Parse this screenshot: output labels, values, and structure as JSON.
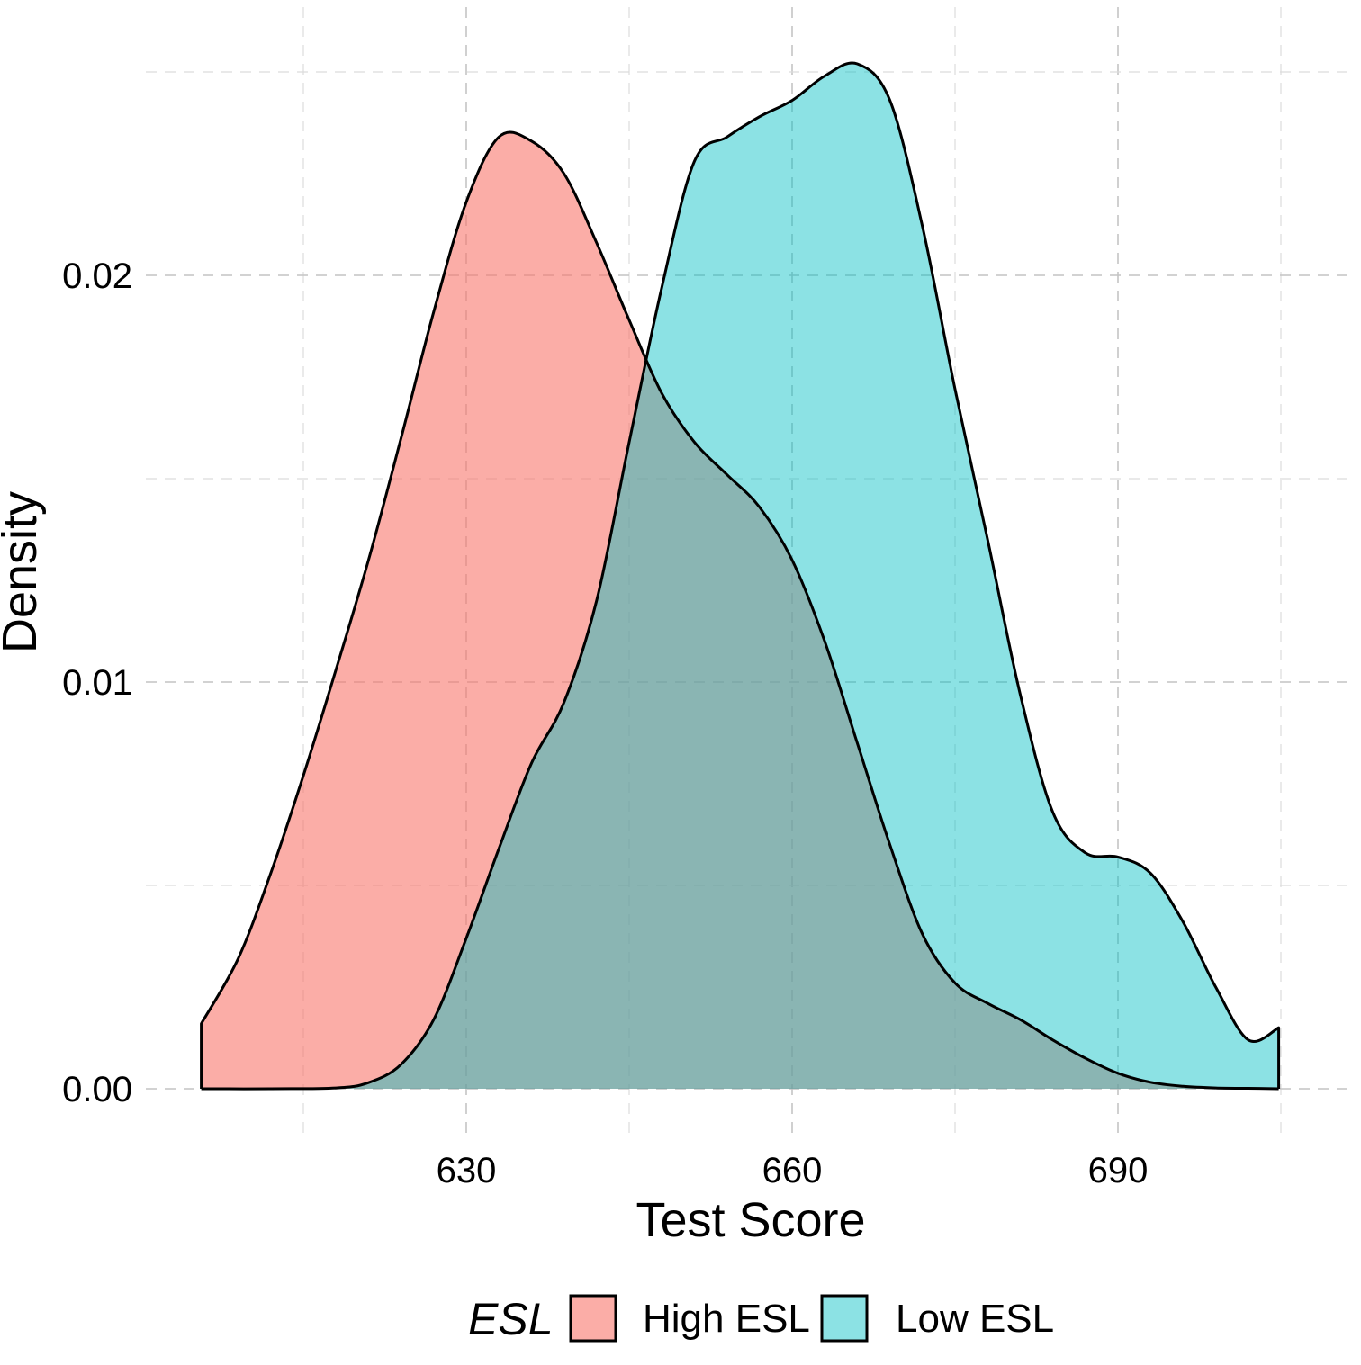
{
  "chart_data": {
    "type": "area",
    "xlabel": "Test Score",
    "ylabel": "Density",
    "xlim": [
      605,
      707
    ],
    "ylim": [
      -0.0012,
      0.0253
    ],
    "x_ticks": [
      630,
      660,
      690
    ],
    "x_tick_labels": [
      "630",
      "660",
      "690"
    ],
    "y_ticks": [
      0.0,
      0.01,
      0.02
    ],
    "y_tick_labels": [
      "0.00",
      "0.01",
      "0.02"
    ],
    "grid": true,
    "legend": {
      "title": "ESL",
      "placement": "bottom"
    },
    "series": [
      {
        "name": "High ESL",
        "color": "#F8766D",
        "opacity": 0.6,
        "x": [
          605.6,
          609,
          612,
          615,
          618,
          621,
          624,
          627,
          630,
          633,
          636,
          639,
          642,
          645,
          648,
          651,
          654,
          657,
          660,
          663,
          666,
          669,
          672,
          675,
          678,
          681,
          684,
          687,
          690,
          693,
          696,
          699,
          702,
          704.8
        ],
        "y": [
          0.0016,
          0.0032,
          0.0053,
          0.0077,
          0.0103,
          0.013,
          0.016,
          0.0191,
          0.0218,
          0.0234,
          0.0233,
          0.0225,
          0.0208,
          0.0189,
          0.0171,
          0.0159,
          0.0151,
          0.0143,
          0.013,
          0.011,
          0.0085,
          0.006,
          0.0038,
          0.0026,
          0.0021,
          0.0017,
          0.0012,
          0.00075,
          0.00038,
          0.00016,
          6e-05,
          2e-05,
          1e-05,
          0.0
        ]
      },
      {
        "name": "Low ESL",
        "color": "#00BFC4",
        "opacity": 0.45,
        "x": [
          605.6,
          612,
          618,
          621,
          624,
          627,
          630,
          633,
          636,
          639,
          642,
          645,
          648,
          651,
          654,
          657,
          660,
          663,
          666,
          669,
          672,
          675,
          678,
          681,
          684,
          687,
          690,
          693,
          696,
          699,
          702,
          704.8
        ],
        "y": [
          0.0,
          0.0,
          2e-05,
          0.00015,
          0.0006,
          0.0017,
          0.0037,
          0.0059,
          0.008,
          0.0095,
          0.012,
          0.0159,
          0.0197,
          0.0228,
          0.0234,
          0.0239,
          0.0243,
          0.0249,
          0.0252,
          0.0243,
          0.0212,
          0.0172,
          0.0135,
          0.0097,
          0.0068,
          0.0058,
          0.0057,
          0.0053,
          0.0041,
          0.0025,
          0.0012,
          0.0015
        ]
      }
    ]
  }
}
